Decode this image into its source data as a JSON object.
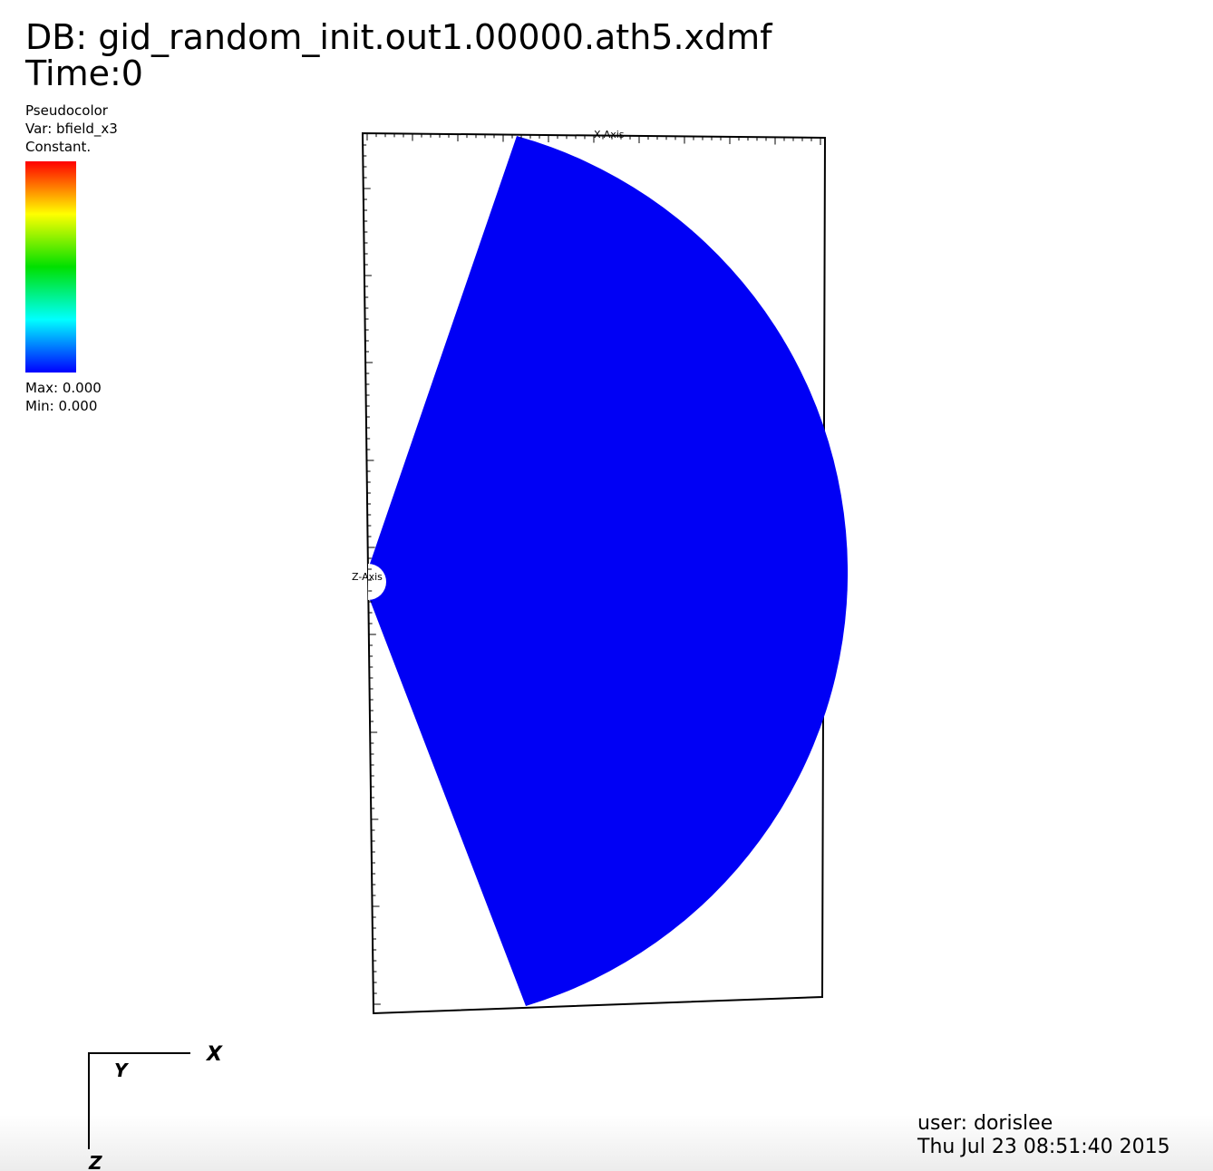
{
  "header": {
    "database": "DB: gid_random_init.out1.00000.ath5.xdmf",
    "time": "Time:0"
  },
  "legend": {
    "plot": "Pseudocolor",
    "variable": "Var: bfield_x3",
    "note": "Constant.",
    "max": "Max:  0.000",
    "min": "Min:  0.000"
  },
  "axes": {
    "x_title": "X-Axis",
    "z_title": "Z-Axis"
  },
  "triad": {
    "x": "X",
    "y": "Y",
    "z": "Z"
  },
  "footer": {
    "user": "user: dorislee",
    "date": "Thu Jul 23 08:51:40 2015"
  }
}
